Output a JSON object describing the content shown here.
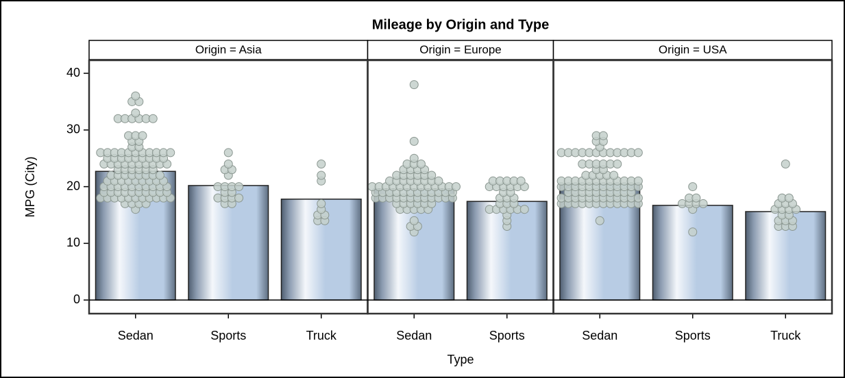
{
  "chart_data": {
    "type": "bar",
    "title": "Mileage by Origin and Type",
    "xlabel": "Type",
    "ylabel": "MPG (City)",
    "ylim": [
      -2.4,
      42.3
    ],
    "yticks": [
      0,
      10,
      20,
      30,
      40
    ],
    "bar_color": "#b8cce4",
    "dot_color": "#c4d0cb",
    "panels": [
      {
        "label": "Origin = Asia",
        "categories": [
          "Sedan",
          "Sports",
          "Truck"
        ],
        "values": [
          22.7,
          20.2,
          17.8
        ],
        "dots": [
          {
            "values": [
              16,
              17,
              18,
              19,
              20,
              21,
              22,
              23,
              24,
              25,
              26,
              27,
              28,
              29,
              32,
              33,
              35,
              36
            ],
            "counts": [
              1,
              4,
              11,
              10,
              10,
              9,
              8,
              6,
              10,
              9,
              11,
              2,
              2,
              3,
              6,
              1,
              2,
              1
            ]
          },
          {
            "values": [
              17,
              18,
              19,
              20,
              22,
              23,
              24,
              26
            ],
            "counts": [
              2,
              4,
              2,
              4,
              1,
              2,
              1,
              1
            ]
          },
          {
            "values": [
              14,
              15,
              16,
              17,
              21,
              22,
              24
            ],
            "counts": [
              2,
              2,
              1,
              1,
              1,
              1,
              1
            ]
          }
        ]
      },
      {
        "label": "Origin = Europe",
        "categories": [
          "Sedan",
          "Sports"
        ],
        "values": [
          19.6,
          17.4
        ],
        "dots": [
          {
            "values": [
              12,
              13,
              14,
              16,
              17,
              18,
              19,
              20,
              21,
              22,
              23,
              24,
              25,
              28,
              38
            ],
            "counts": [
              1,
              2,
              1,
              5,
              6,
              12,
              12,
              13,
              8,
              6,
              4,
              3,
              1,
              1,
              1
            ]
          },
          {
            "values": [
              13,
              14,
              15,
              16,
              17,
              18,
              19,
              20,
              21
            ],
            "counts": [
              1,
              1,
              1,
              6,
              3,
              3,
              2,
              6,
              5
            ]
          }
        ]
      },
      {
        "label": "Origin = USA",
        "categories": [
          "Sedan",
          "Sports",
          "Truck"
        ],
        "values": [
          20.5,
          16.7,
          15.6
        ],
        "dots": [
          {
            "values": [
              14,
              17,
              18,
              19,
              20,
              21,
              22,
              23,
              24,
              26,
              27,
              28,
              29
            ],
            "counts": [
              1,
              12,
              12,
              10,
              12,
              12,
              5,
              2,
              6,
              12,
              1,
              2,
              2
            ]
          },
          {
            "values": [
              12,
              16,
              17,
              18,
              20
            ],
            "counts": [
              1,
              1,
              4,
              2,
              1
            ]
          },
          {
            "values": [
              13,
              14,
              15,
              16,
              17,
              18,
              24
            ],
            "counts": [
              3,
              3,
              2,
              4,
              3,
              2,
              1
            ]
          }
        ]
      }
    ]
  }
}
